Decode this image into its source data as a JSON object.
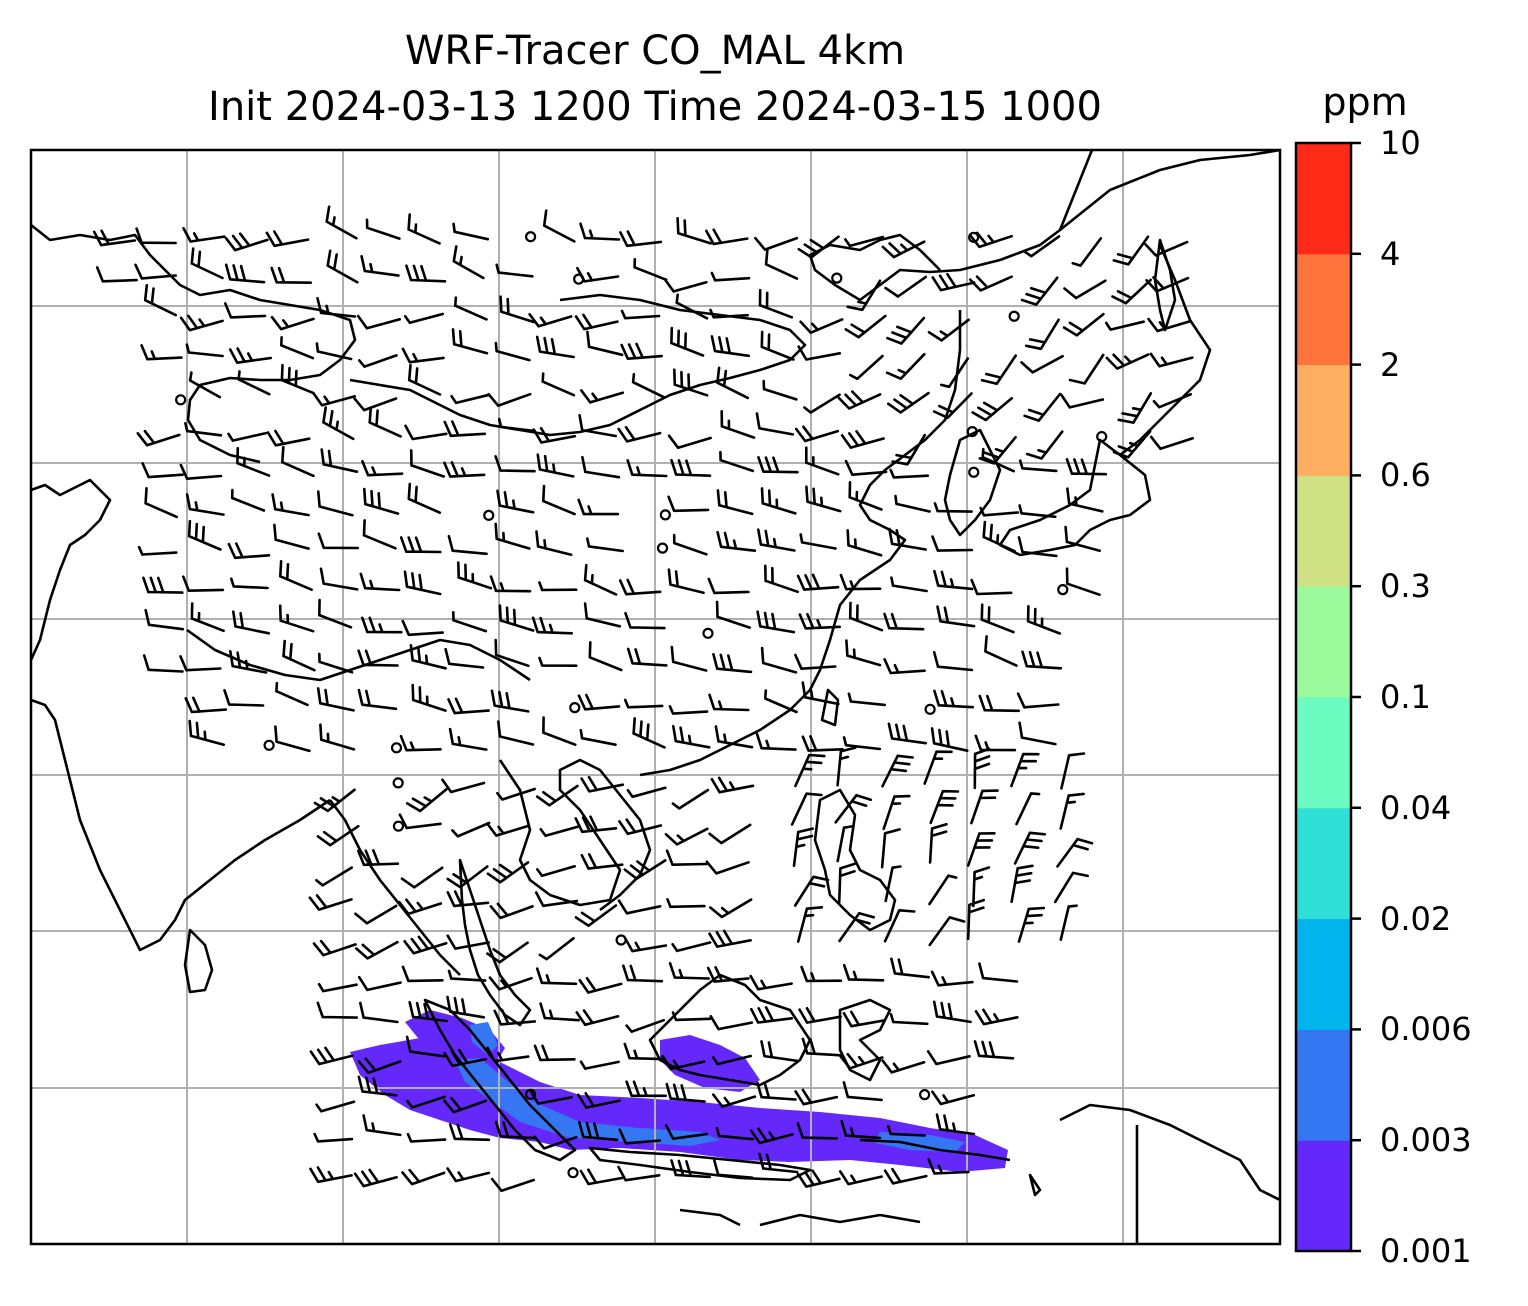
{
  "title": {
    "line1": "WRF-Tracer CO_MAL 4km",
    "line2": "Init 2024-03-13 1200 Time 2024-03-15 1000"
  },
  "colorbar": {
    "unit": "ppm",
    "levels": [
      "0.001",
      "0.003",
      "0.006",
      "0.02",
      "0.04",
      "0.1",
      "0.3",
      "0.6",
      "2",
      "4",
      "10"
    ],
    "colors": [
      "#6428fa",
      "#3576f3",
      "#02b4ee",
      "#2ee0d6",
      "#6cfbc1",
      "#9bfa9b",
      "#d0e085",
      "#fdae61",
      "#ff733c",
      "#ff2a17"
    ]
  },
  "map": {
    "coastline_color": "#000000",
    "gridline_color": "#b0b0b0",
    "barb_color": "#000000",
    "tracer_plume_color": "#6428fa",
    "tracer_plume_edge_color": "#3576f3"
  }
}
